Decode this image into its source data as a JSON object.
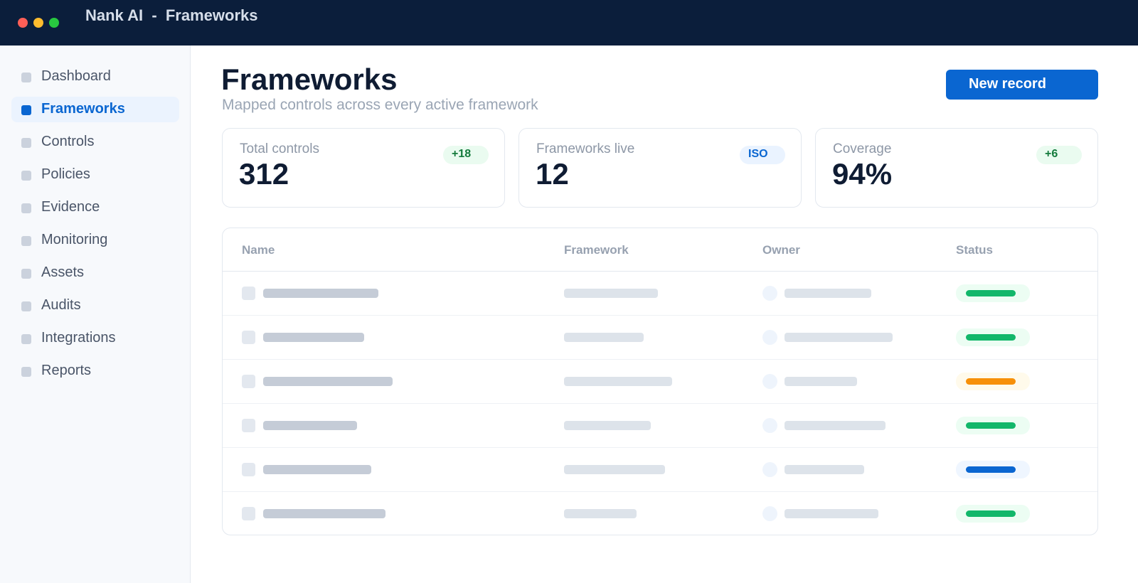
{
  "window": {
    "title": "Nank AI  -  Frameworks",
    "controls": [
      {
        "name": "close",
        "color": "#ff5f57"
      },
      {
        "name": "minimize",
        "color": "#febc2e"
      },
      {
        "name": "maximize",
        "color": "#28c840"
      }
    ]
  },
  "sidebar": {
    "items": [
      {
        "label": "Dashboard",
        "active": false
      },
      {
        "label": "Frameworks",
        "active": true
      },
      {
        "label": "Controls",
        "active": false
      },
      {
        "label": "Policies",
        "active": false
      },
      {
        "label": "Evidence",
        "active": false
      },
      {
        "label": "Monitoring",
        "active": false
      },
      {
        "label": "Assets",
        "active": false
      },
      {
        "label": "Audits",
        "active": false
      },
      {
        "label": "Integrations",
        "active": false
      },
      {
        "label": "Reports",
        "active": false
      }
    ]
  },
  "header": {
    "title": "Frameworks",
    "subtitle": "Mapped controls across every active framework",
    "new_record_label": "New record"
  },
  "stats": [
    {
      "label": "Total controls",
      "value": "312",
      "badge": "+18",
      "badge_tone": "green"
    },
    {
      "label": "Frameworks live",
      "value": "12",
      "badge": "ISO",
      "badge_tone": "blue"
    },
    {
      "label": "Coverage",
      "value": "94%",
      "badge": "+6",
      "badge_tone": "green"
    }
  ],
  "table": {
    "columns": [
      "Name",
      "Framework",
      "Owner",
      "Status"
    ],
    "rows": [
      {
        "status": "ok"
      },
      {
        "status": "ok"
      },
      {
        "status": "warning"
      },
      {
        "status": "ok"
      },
      {
        "status": "info"
      },
      {
        "status": "ok"
      }
    ]
  },
  "colors": {
    "accent": "#0a66d1",
    "status_ok": "#12b76a",
    "status_ok_bg": "#ecfdf3",
    "status_warning": "#f79009",
    "status_warning_bg": "#fffaeb",
    "status_info": "#0a66d1",
    "status_info_bg": "#eff6ff"
  }
}
